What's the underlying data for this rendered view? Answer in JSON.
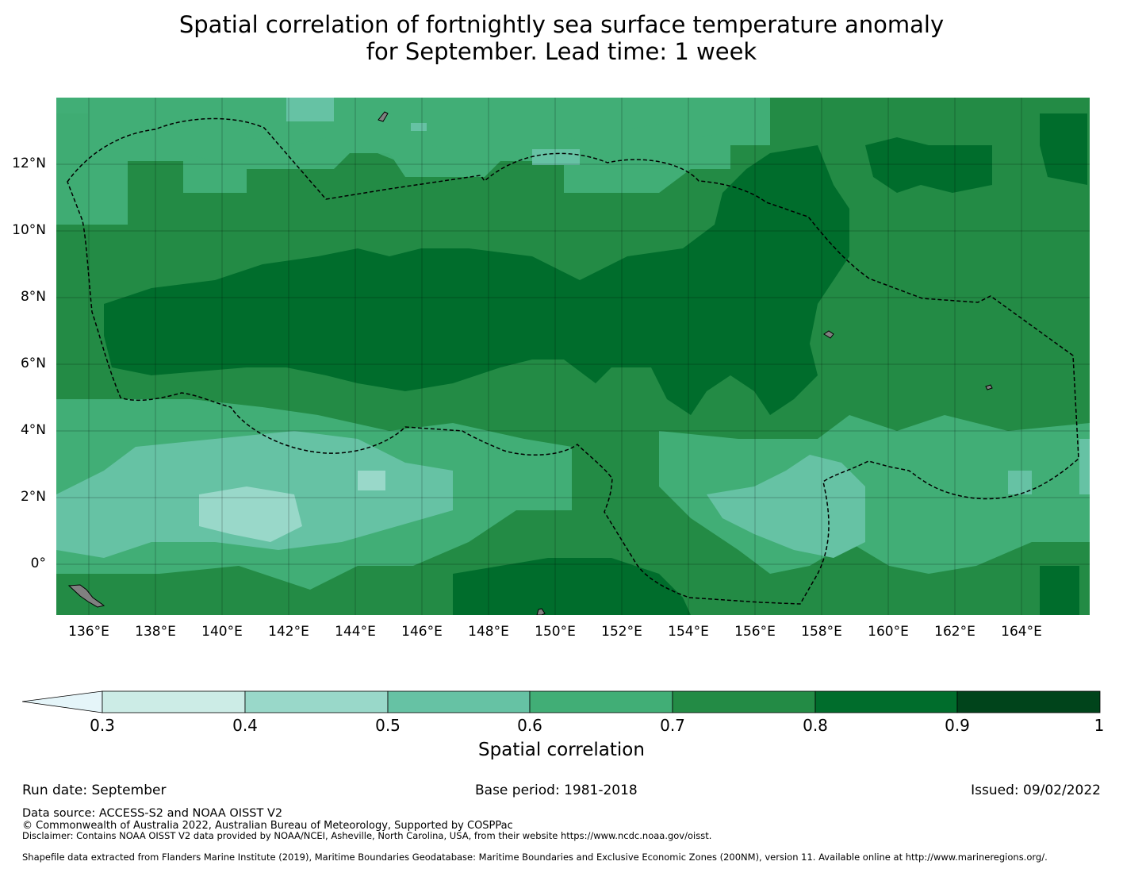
{
  "title": {
    "line1": "Spatial correlation of fortnightly sea surface temperature anomaly",
    "line2": "for September. Lead time: 1 week"
  },
  "map": {
    "lat_labels": [
      "12°N",
      "10°N",
      "8°N",
      "6°N",
      "4°N",
      "2°N",
      "0°"
    ],
    "lon_labels": [
      "136°E",
      "138°E",
      "140°E",
      "142°E",
      "144°E",
      "146°E",
      "148°E",
      "150°E",
      "152°E",
      "154°E",
      "156°E",
      "158°E",
      "160°E",
      "162°E",
      "164°E"
    ],
    "lat_range": [
      -1.5,
      14.0
    ],
    "lon_range": [
      134.9,
      165.9
    ]
  },
  "colorbar": {
    "ticks": [
      "0.3",
      "0.4",
      "0.5",
      "0.6",
      "0.7",
      "0.8",
      "0.9",
      "1"
    ],
    "colors": [
      "#e5f5f9",
      "#ccece6",
      "#99d8c9",
      "#66c2a4",
      "#41ae76",
      "#238b45",
      "#006d2c",
      "#00441b"
    ],
    "label": "Spatial correlation"
  },
  "footer": {
    "run_date": "Run date: September",
    "base_period": "Base period: 1981-2018",
    "issued": "Issued: 09/02/2022",
    "data_source": "Data source: ACCESS-S2 and NOAA OISST V2",
    "copyright": "© Commonwealth of Australia 2022, Australian Bureau of Meteorology, Supported by COSPPac",
    "disclaimer": "Disclaimer: Contains NOAA OISST V2 data provided by NOAA/NCEI, Asheville, North Carolina, USA, from their website https://www.ncdc.noaa.gov/oisst.",
    "shapefile": "Shapefile data extracted from Flanders Marine Institute (2019), Maritime Boundaries Geodatabase: Maritime Boundaries and Exclusive Economic Zones (200NM), version 11. Available online at http://www.marineregions.org/."
  }
}
